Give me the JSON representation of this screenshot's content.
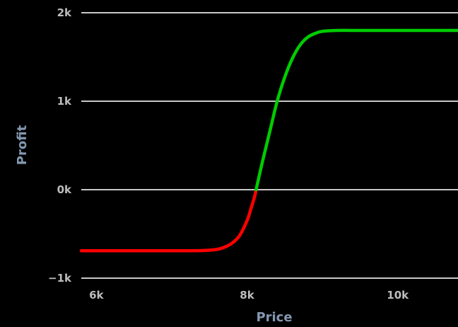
{
  "chart_data": {
    "type": "line",
    "xlabel": "Price",
    "ylabel": "Profit",
    "xlim": [
      5800,
      10800
    ],
    "ylim": [
      -1000,
      2000
    ],
    "x_ticks": [
      {
        "value": 6000,
        "label": "6k"
      },
      {
        "value": 8000,
        "label": "8k"
      },
      {
        "value": 10000,
        "label": "10k"
      }
    ],
    "y_ticks": [
      {
        "value": 2000,
        "label": "2k"
      },
      {
        "value": 1000,
        "label": "1k"
      },
      {
        "value": 0,
        "label": "0k"
      },
      {
        "value": -1000,
        "label": "−1k"
      }
    ],
    "grid": "horizontal",
    "colors": {
      "background": "#000000",
      "grid": "#c8c8c8",
      "tick_label": "#bdbdbd",
      "axis_title": "#8497b0",
      "loss": "#ff0000",
      "profit": "#00cc00"
    },
    "series": [
      {
        "segment": "loss",
        "color": "#ff0000",
        "x": [
          5800,
          6000,
          6500,
          7000,
          7400,
          7600,
          7700,
          7800,
          7900,
          8000,
          8050,
          8100,
          8120
        ],
        "y": [
          -690,
          -690,
          -690,
          -690,
          -688,
          -675,
          -650,
          -605,
          -520,
          -350,
          -220,
          -80,
          0
        ]
      },
      {
        "segment": "profit",
        "color": "#00cc00",
        "x": [
          8120,
          8200,
          8300,
          8400,
          8500,
          8600,
          8700,
          8800,
          8900,
          9000,
          9200,
          9500,
          10000,
          10800
        ],
        "y": [
          0,
          300,
          650,
          1000,
          1270,
          1480,
          1630,
          1720,
          1765,
          1790,
          1800,
          1800,
          1800,
          1800
        ]
      }
    ]
  }
}
